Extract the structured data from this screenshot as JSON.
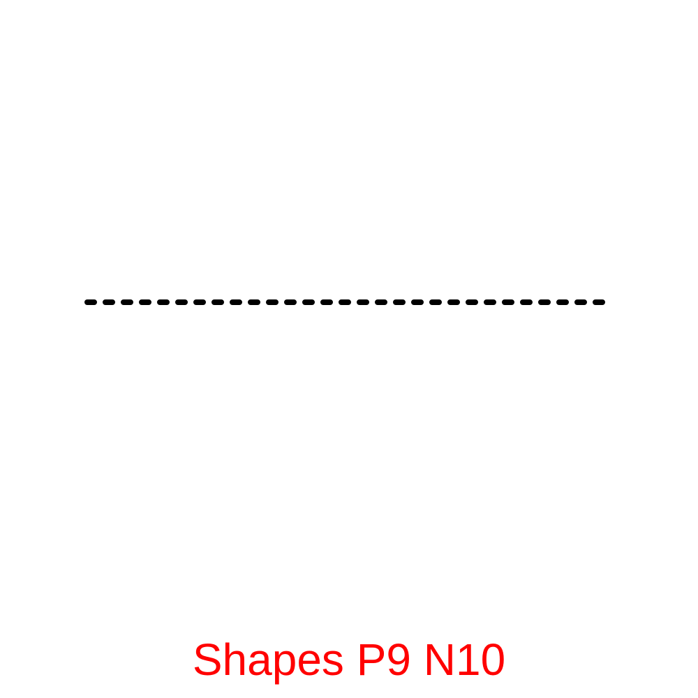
{
  "caption": {
    "text": "Shapes P9 N10",
    "color": "#ff0000"
  },
  "shape": {
    "kind": "dashed-line",
    "stroke_color": "#000000",
    "line_style": "dashed"
  }
}
